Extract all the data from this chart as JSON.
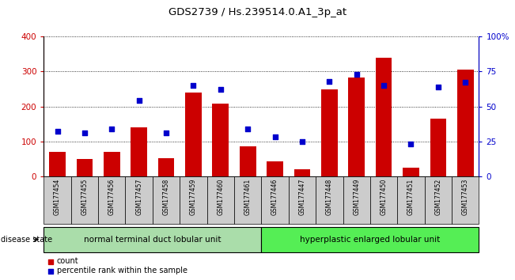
{
  "title": "GDS2739 / Hs.239514.0.A1_3p_at",
  "samples": [
    "GSM177454",
    "GSM177455",
    "GSM177456",
    "GSM177457",
    "GSM177458",
    "GSM177459",
    "GSM177460",
    "GSM177461",
    "GSM177446",
    "GSM177447",
    "GSM177448",
    "GSM177449",
    "GSM177450",
    "GSM177451",
    "GSM177452",
    "GSM177453"
  ],
  "counts": [
    70,
    50,
    70,
    140,
    53,
    240,
    208,
    87,
    43,
    20,
    248,
    283,
    340,
    25,
    165,
    305
  ],
  "percentiles": [
    32,
    31,
    34,
    54,
    31,
    65,
    62,
    34,
    28,
    25,
    68,
    73,
    65,
    23,
    64,
    67
  ],
  "group1_label": "normal terminal duct lobular unit",
  "group2_label": "hyperplastic enlarged lobular unit",
  "group1_count": 8,
  "group2_count": 8,
  "bar_color": "#cc0000",
  "dot_color": "#0000cc",
  "group1_bg": "#aaddaa",
  "group2_bg": "#55ee55",
  "tick_bg": "#cccccc",
  "ylim_left": [
    0,
    400
  ],
  "ylim_right": [
    0,
    100
  ],
  "yticks_left": [
    0,
    100,
    200,
    300,
    400
  ],
  "yticks_right": [
    0,
    25,
    50,
    75,
    100
  ],
  "legend_count_label": "count",
  "legend_pct_label": "percentile rank within the sample",
  "disease_state_label": "disease state"
}
